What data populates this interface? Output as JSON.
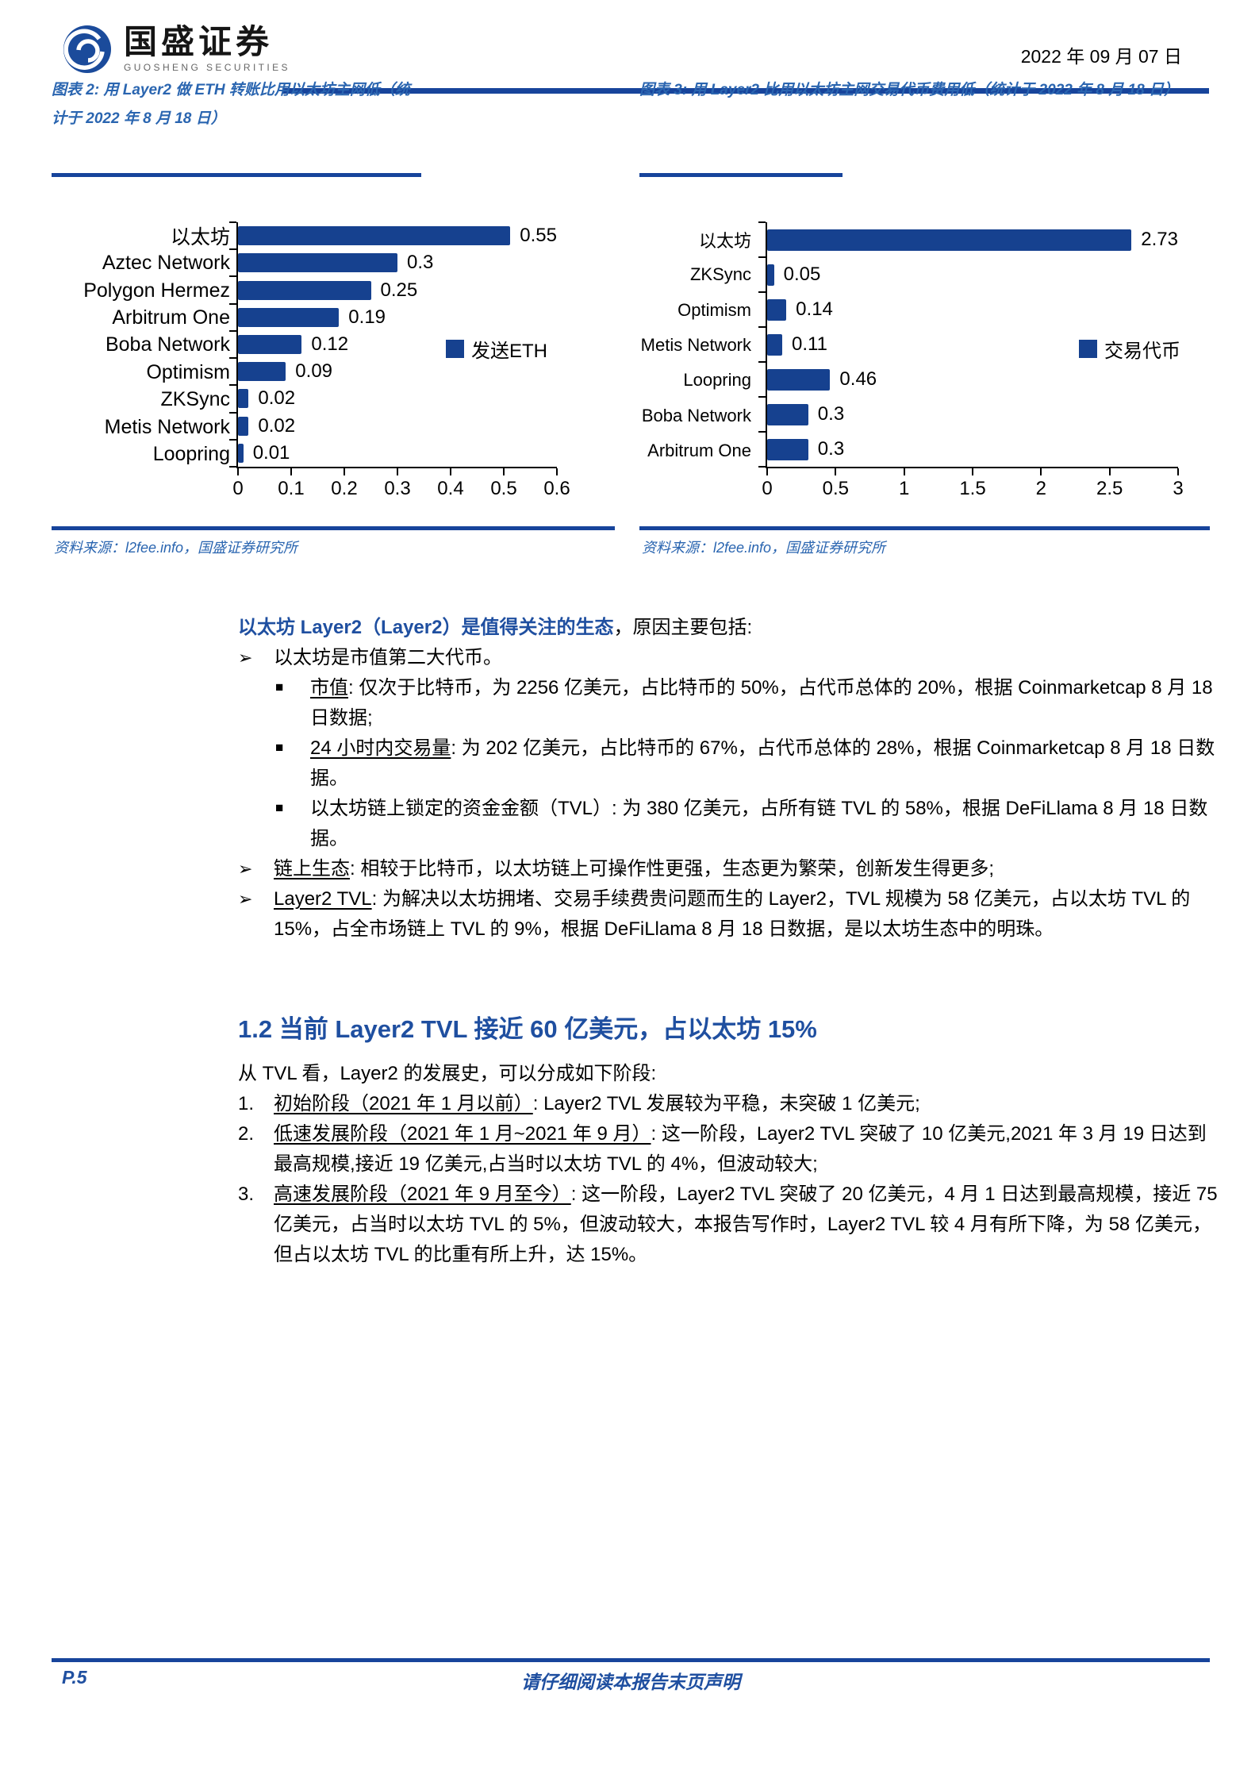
{
  "header": {
    "brand_cn": "国盛证券",
    "brand_en": "GUOSHENG SECURITIES",
    "date": "2022 年 09 月 07 日"
  },
  "figures": [
    {
      "title": "图表 2: 用 Layer2 做 ETH 转账比用以太坊主网低（统计于 2022 年 8 月 18 日）",
      "source": "资料来源：l2fee.info，国盛证券研究所"
    },
    {
      "title": "图表 3: 用 Layer2 比用以太坊主网交易代币费用低（统计于 2022 年 8 月 18 日）",
      "source": "资料来源：l2fee.info，国盛证券研究所"
    }
  ],
  "chart_data": [
    {
      "type": "bar",
      "orientation": "horizontal",
      "title": "用 Layer2 做 ETH 转账比用以太坊主网低",
      "categories": [
        "以太坊",
        "Aztec Network",
        "Polygon Hermez",
        "Arbitrum One",
        "Boba Network",
        "Optimism",
        "ZKSync",
        "Metis Network",
        "Loopring"
      ],
      "values": [
        0.55,
        0.3,
        0.25,
        0.19,
        0.12,
        0.09,
        0.02,
        0.02,
        0.01
      ],
      "value_labels": [
        "0.55",
        "0.3",
        "0.25",
        "0.19",
        "0.12",
        "0.09",
        "0.02",
        "0.02",
        "0.01"
      ],
      "xlim": [
        0,
        0.6
      ],
      "xticks": [
        0,
        0.1,
        0.2,
        0.3,
        0.4,
        0.5,
        0.6
      ],
      "xtick_labels": [
        "0",
        "0.1",
        "0.2",
        "0.3",
        "0.4",
        "0.5",
        "0.6"
      ],
      "legend": "发送ETH",
      "legend_position": "middle-right",
      "bar_color": "#16418F",
      "grid": false
    },
    {
      "type": "bar",
      "orientation": "horizontal",
      "title": "用 Layer2 比用以太坊主网交易代币费用低",
      "categories": [
        "以太坊",
        "ZKSync",
        "Optimism",
        "Metis Network",
        "Loopring",
        "Boba Network",
        "Arbitrum One"
      ],
      "values": [
        2.73,
        0.05,
        0.14,
        0.11,
        0.46,
        0.3,
        0.3
      ],
      "value_labels": [
        "2.73",
        "0.05",
        "0.14",
        "0.11",
        "0.46",
        "0.3",
        "0.3"
      ],
      "xlim": [
        0,
        3
      ],
      "xticks": [
        0,
        0.5,
        1,
        1.5,
        2,
        2.5,
        3
      ],
      "xtick_labels": [
        "0",
        "0.5",
        "1",
        "1.5",
        "2",
        "2.5",
        "3"
      ],
      "legend": "交易代币",
      "legend_position": "middle-right",
      "bar_color": "#16418F",
      "grid": false
    }
  ],
  "body": {
    "intro_highlight": "以太坊 Layer2（Layer2）是值得关注的生态",
    "intro_rest": "，原因主要包括:",
    "arrow_marker": "➢",
    "square_marker": "■",
    "items": [
      {
        "text": "以太坊是市值第二大代币。",
        "children": [
          {
            "lead": "市值",
            "underline": true,
            "rest": ": 仅次于比特币，为 2256 亿美元，占比特币的 50%，占代币总体的 20%，根据 Coinmarketcap 8 月 18 日数据;"
          },
          {
            "lead": "24 小时内交易量",
            "underline": true,
            "rest": ": 为 202 亿美元，占比特币的 67%，占代币总体的 28%，根据 Coinmarketcap 8 月 18 日数据。"
          },
          {
            "lead": "以太坊链上锁定的资金金额（TVL）",
            "underline": false,
            "rest": ": 为 380 亿美元，占所有链 TVL 的 58%，根据 DeFiLlama 8 月 18 日数据。"
          }
        ]
      },
      {
        "lead": "链上生态",
        "underline": true,
        "rest": ": 相较于比特币，以太坊链上可操作性更强，生态更为繁荣，创新发生得更多;",
        "children": []
      },
      {
        "lead": "Layer2 TVL",
        "underline": true,
        "rest": ": 为解决以太坊拥堵、交易手续费贵问题而生的 Layer2，TVL 规模为 58 亿美元，占以太坊 TVL 的 15%，占全市场链上 TVL 的 9%，根据 DeFiLlama 8 月 18 日数据，是以太坊生态中的明珠。",
        "children": []
      }
    ]
  },
  "section": {
    "heading": "1.2 当前 Layer2 TVL 接近 60 亿美元，占以太坊 15%",
    "lead": "从 TVL 看，Layer2 的发展史，可以分成如下阶段:"
  },
  "stages": [
    {
      "no": "1.",
      "lead": "初始阶段（2021 年 1 月以前）",
      "rest": ": Layer2 TVL 发展较为平稳，未突破 1 亿美元;"
    },
    {
      "no": "2.",
      "lead": "低速发展阶段（2021 年 1 月~2021 年 9 月）",
      "rest": ": 这一阶段，Layer2 TVL 突破了 10 亿美元,2021 年 3 月 19 日达到最高规模,接近 19 亿美元,占当时以太坊 TVL 的 4%，但波动较大;"
    },
    {
      "no": "3.",
      "lead": "高速发展阶段（2021 年 9 月至今）",
      "rest": ": 这一阶段，Layer2 TVL 突破了 20 亿美元，4 月 1 日达到最高规模，接近 75 亿美元，占当时以太坊 TVL 的 5%，但波动较大，本报告写作时，Layer2 TVL 较 4 月有所下降，为 58 亿美元，但占以太坊 TVL 的比重有所上升，达 15%。"
    }
  ],
  "footer": {
    "page_no": "P.5",
    "disclaimer": "请仔细阅读本报告末页声明"
  }
}
